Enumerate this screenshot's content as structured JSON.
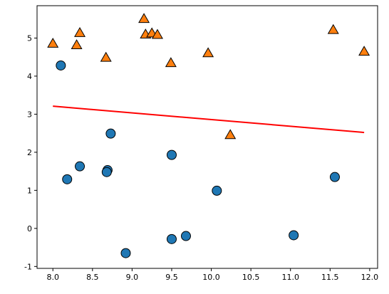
{
  "chart_data": {
    "type": "scatter",
    "title": "",
    "xlabel": "",
    "ylabel": "",
    "xlim": [
      7.8,
      12.1
    ],
    "ylim": [
      -1.05,
      5.85
    ],
    "xticks": [
      "8.0",
      "8.5",
      "9.0",
      "9.5",
      "10.0",
      "10.5",
      "11.0",
      "11.5",
      "12.0"
    ],
    "yticks": [
      "-1",
      "0",
      "1",
      "2",
      "3",
      "4",
      "5"
    ],
    "grid": false,
    "legend": "none",
    "series": [
      {
        "marker": "circle",
        "color": "#1f77b4",
        "points": [
          [
            8.1,
            4.28
          ],
          [
            8.18,
            1.29
          ],
          [
            8.34,
            1.63
          ],
          [
            8.69,
            1.53
          ],
          [
            8.68,
            1.48
          ],
          [
            8.73,
            2.49
          ],
          [
            8.92,
            -0.65
          ],
          [
            9.5,
            1.93
          ],
          [
            9.5,
            -0.28
          ],
          [
            9.68,
            -0.2
          ],
          [
            10.07,
            0.99
          ],
          [
            11.04,
            -0.18
          ],
          [
            11.56,
            1.35
          ]
        ]
      },
      {
        "marker": "triangle",
        "color": "#ff7f0e",
        "points": [
          [
            8.0,
            4.85
          ],
          [
            8.3,
            4.81
          ],
          [
            8.34,
            5.13
          ],
          [
            8.67,
            4.48
          ],
          [
            9.15,
            5.5
          ],
          [
            9.17,
            5.09
          ],
          [
            9.25,
            5.12
          ],
          [
            9.32,
            5.08
          ],
          [
            9.49,
            4.34
          ],
          [
            9.96,
            4.6
          ],
          [
            10.24,
            2.45
          ],
          [
            11.54,
            5.21
          ],
          [
            11.93,
            4.64
          ]
        ]
      }
    ],
    "line": {
      "color": "#ff0000",
      "points": [
        [
          8.0,
          3.21
        ],
        [
          11.93,
          2.52
        ]
      ]
    }
  }
}
